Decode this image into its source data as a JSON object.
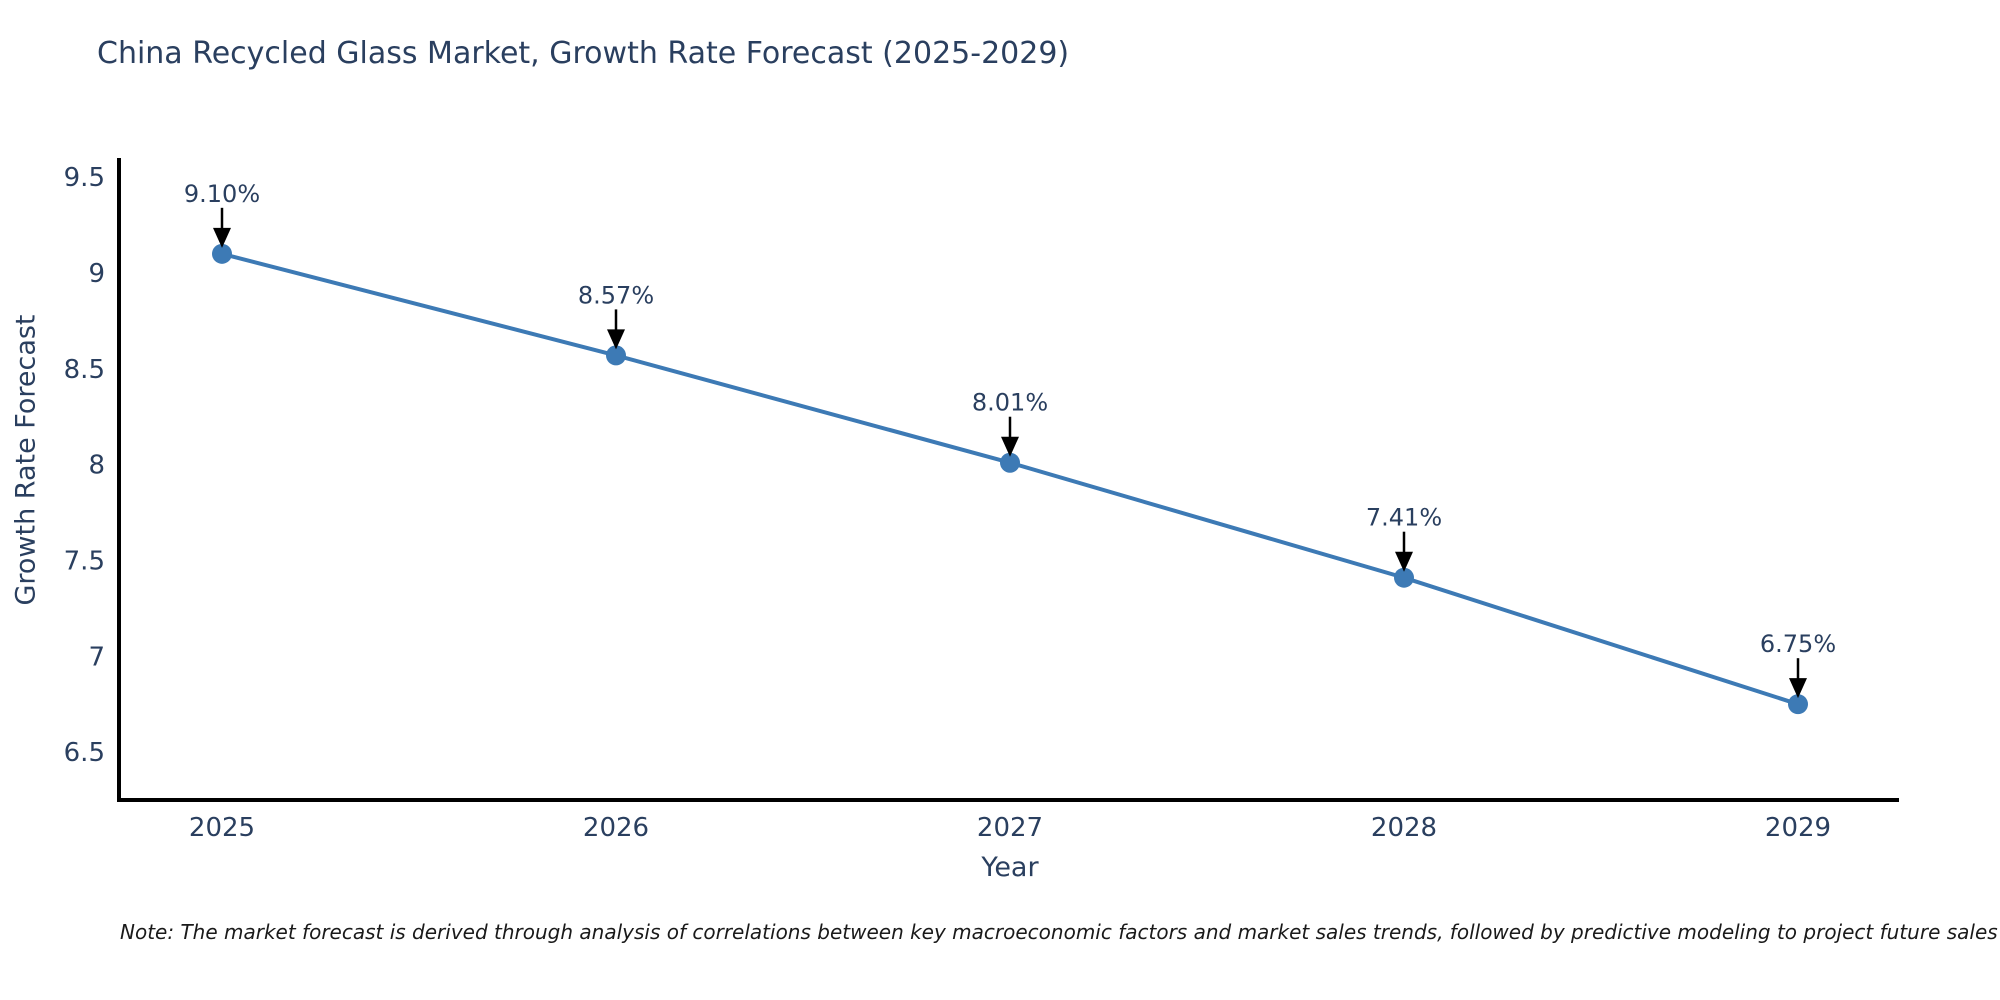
{
  "chart_data": {
    "type": "line",
    "title": "China Recycled Glass Market, Growth Rate Forecast (2025-2029)",
    "xlabel": "Year",
    "ylabel": "Growth Rate Forecast",
    "categories": [
      "2025",
      "2026",
      "2027",
      "2028",
      "2029"
    ],
    "series": [
      {
        "name": "Growth Rate Forecast",
        "values": [
          9.1,
          8.57,
          8.01,
          7.41,
          6.75
        ]
      }
    ],
    "point_labels": [
      "9.10%",
      "8.57%",
      "8.01%",
      "7.41%",
      "6.75%"
    ],
    "ytick_values": [
      9.5,
      9,
      8.5,
      8,
      7.5,
      7,
      6.5
    ],
    "ytick_labels": [
      "9.5",
      "9",
      "8.5",
      "8",
      "7.5",
      "7",
      "6.5"
    ],
    "ylim": [
      6.25,
      9.6
    ],
    "grid": false,
    "legend_position": "none",
    "colors": {
      "line": "#3D7AB5",
      "marker": "#3D7AB5",
      "axis": "#000000",
      "text": "#2a3f5f",
      "arrow": "#000000"
    }
  },
  "note": {
    "text": "Note: The market forecast is derived through analysis of correlations between key macroeconomic factors and market sales trends, followed by predictive modeling to project future sales"
  }
}
